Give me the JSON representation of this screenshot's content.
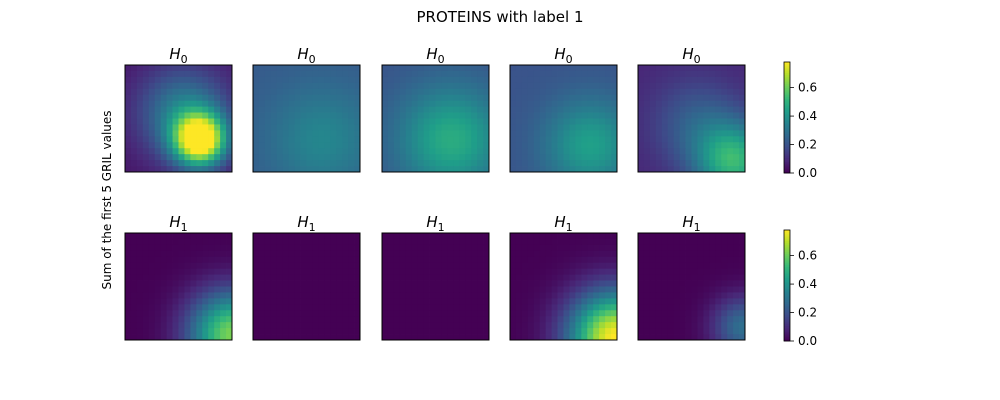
{
  "chart_data": {
    "type": "heatmap",
    "title": "PROTEINS with label 1",
    "ylabel": "Sum of the first 5 GRIL values",
    "colormap": "viridis",
    "colorbar": {
      "range": [
        0.0,
        0.78
      ],
      "ticks": [
        "0.0",
        "0.2",
        "0.4",
        "0.6"
      ]
    },
    "rows": [
      {
        "panel_title": "H_0",
        "panels": [
          {
            "base": 0.04,
            "blobs": [
              {
                "cx": 0.7,
                "cy": 0.7,
                "s": 0.17,
                "a": 0.78
              },
              {
                "cx": 0.55,
                "cy": 0.45,
                "s": 0.3,
                "a": 0.3
              }
            ]
          },
          {
            "base": 0.22,
            "blobs": [
              {
                "cx": 0.65,
                "cy": 0.7,
                "s": 0.35,
                "a": 0.14
              }
            ]
          },
          {
            "base": 0.2,
            "blobs": [
              {
                "cx": 0.65,
                "cy": 0.7,
                "s": 0.35,
                "a": 0.28
              }
            ]
          },
          {
            "base": 0.2,
            "blobs": [
              {
                "cx": 0.75,
                "cy": 0.75,
                "s": 0.3,
                "a": 0.24
              }
            ]
          },
          {
            "base": 0.08,
            "blobs": [
              {
                "cx": 0.9,
                "cy": 0.9,
                "s": 0.25,
                "a": 0.42
              },
              {
                "cx": 0.55,
                "cy": 0.55,
                "s": 0.3,
                "a": 0.15
              }
            ]
          }
        ]
      },
      {
        "panel_title": "H_1",
        "panels": [
          {
            "base": 0.0,
            "blobs": [
              {
                "cx": 1.0,
                "cy": 0.95,
                "s": 0.28,
                "a": 0.62
              }
            ]
          },
          {
            "base": 0.0,
            "blobs": []
          },
          {
            "base": 0.0,
            "blobs": []
          },
          {
            "base": 0.0,
            "blobs": [
              {
                "cx": 0.98,
                "cy": 0.98,
                "s": 0.3,
                "a": 0.78
              }
            ]
          },
          {
            "base": 0.0,
            "blobs": [
              {
                "cx": 0.98,
                "cy": 0.88,
                "s": 0.2,
                "a": 0.28
              }
            ]
          }
        ]
      }
    ]
  }
}
